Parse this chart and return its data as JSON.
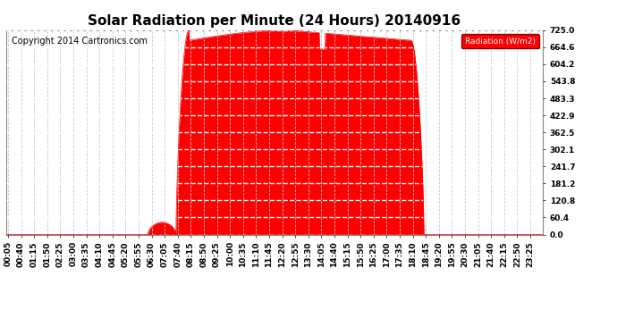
{
  "title": "Solar Radiation per Minute (24 Hours) 20140916",
  "copyright": "Copyright 2014 Cartronics.com",
  "legend_label": "Radiation (W/m2)",
  "y_ticks": [
    0.0,
    60.4,
    120.8,
    181.2,
    241.7,
    302.1,
    362.5,
    422.9,
    483.3,
    543.8,
    604.2,
    664.6,
    725.0
  ],
  "ymax": 725.0,
  "ymin": 0.0,
  "fill_color": "#ff0000",
  "line_color": "#ff0000",
  "baseline_color": "#ff0000",
  "grid_color": "#c8c8c8",
  "background_color": "#ffffff",
  "plot_bg_color": "#ffffff",
  "title_fontsize": 11,
  "tick_fontsize": 6.5,
  "copyright_fontsize": 7,
  "sunrise_minute": 455,
  "sunset_minute": 1120,
  "peak_minute": 755,
  "peak_value": 725.0,
  "total_minutes": 1440,
  "x_tick_start": 5,
  "x_tick_interval": 35
}
